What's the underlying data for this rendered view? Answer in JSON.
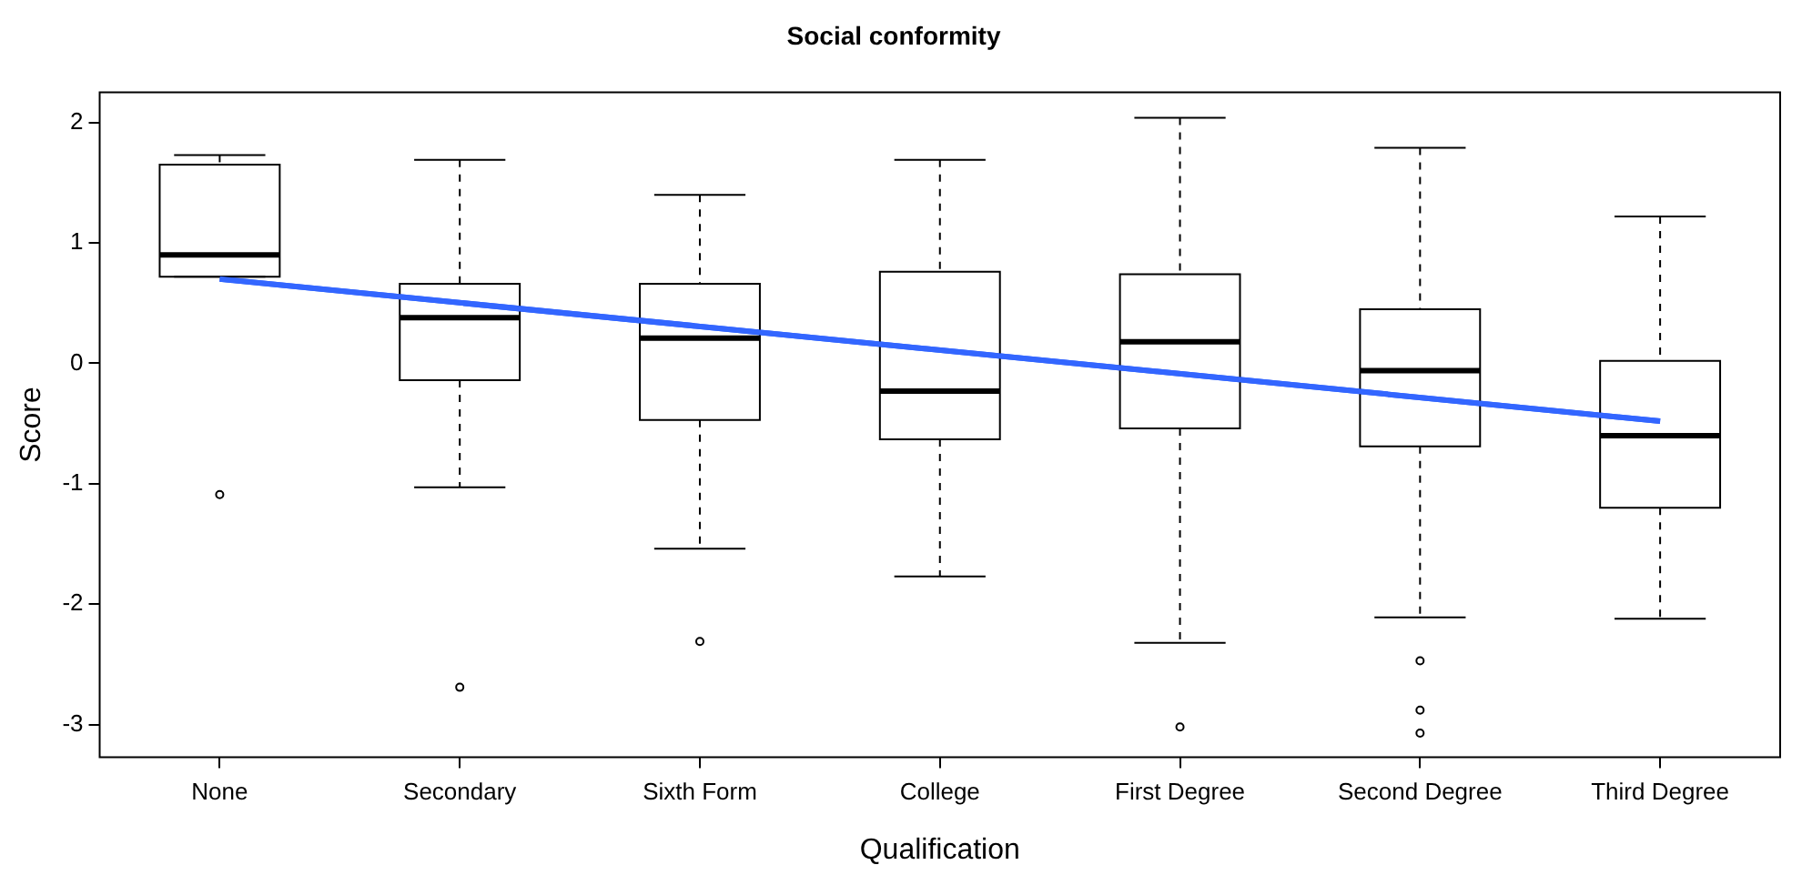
{
  "chart_data": {
    "type": "box",
    "title": "Social conformity",
    "xlabel": "Qualification",
    "ylabel": "Score",
    "categories": [
      "None",
      "Secondary",
      "Sixth Form",
      "College",
      "First Degree",
      "Second Degree",
      "Third Degree"
    ],
    "series": [
      {
        "color": "#000000",
        "boxes": [
          {
            "low": 0.72,
            "q1": 0.72,
            "median": 0.9,
            "q3": 1.65,
            "high": 1.73,
            "outliers": [
              -1.09
            ]
          },
          {
            "low": -1.03,
            "q1": -0.14,
            "median": 0.38,
            "q3": 0.66,
            "high": 1.69,
            "outliers": [
              -2.69
            ]
          },
          {
            "low": -1.54,
            "q1": -0.47,
            "median": 0.21,
            "q3": 0.66,
            "high": 1.4,
            "outliers": [
              -2.31
            ]
          },
          {
            "low": -1.77,
            "q1": -0.63,
            "median": -0.23,
            "q3": 0.76,
            "high": 1.69
          },
          {
            "low": -2.32,
            "q1": -0.54,
            "median": 0.18,
            "q3": 0.74,
            "high": 2.04,
            "outliers": [
              -3.02
            ]
          },
          {
            "low": -2.11,
            "q1": -0.69,
            "median": -0.06,
            "q3": 0.45,
            "high": 1.79,
            "outliers": [
              -2.47,
              -2.88,
              -3.07
            ]
          },
          {
            "low": -2.12,
            "q1": -1.2,
            "median": -0.6,
            "q3": 0.02,
            "high": 1.22
          }
        ]
      },
      {
        "type": "line",
        "color": "#3366ff",
        "x": [
          "None",
          "Third Degree"
        ],
        "values": [
          0.7,
          -0.48
        ]
      }
    ],
    "ylim": [
      -3.27,
      2.25
    ],
    "yticks": [
      -3,
      -2,
      -1,
      0,
      1,
      2
    ]
  }
}
